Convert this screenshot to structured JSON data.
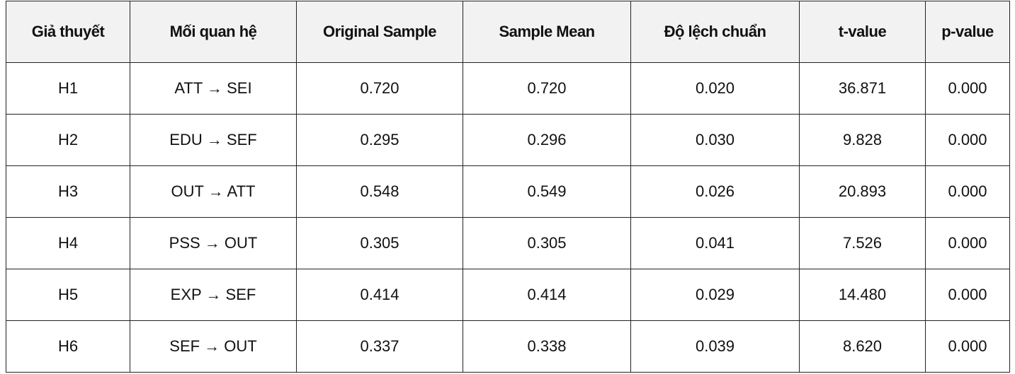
{
  "table": {
    "headers": [
      "Giả thuyết",
      "Mối quan hệ",
      "Original Sample",
      "Sample Mean",
      "Độ lệch chuẩn",
      "t-value",
      "p-value"
    ],
    "rows": [
      [
        "H1",
        "ATT → SEI",
        "0.720",
        "0.720",
        "0.020",
        "36.871",
        "0.000"
      ],
      [
        "H2",
        "EDU → SEF",
        "0.295",
        "0.296",
        "0.030",
        "9.828",
        "0.000"
      ],
      [
        "H3",
        "OUT → ATT",
        "0.548",
        "0.549",
        "0.026",
        "20.893",
        "0.000"
      ],
      [
        "H4",
        "PSS → OUT",
        "0.305",
        "0.305",
        "0.041",
        "7.526",
        "0.000"
      ],
      [
        "H5",
        "EXP → SEF",
        "0.414",
        "0.414",
        "0.029",
        "14.480",
        "0.000"
      ],
      [
        "H6",
        "SEF → OUT",
        "0.337",
        "0.338",
        "0.039",
        "8.620",
        "0.000"
      ]
    ]
  }
}
